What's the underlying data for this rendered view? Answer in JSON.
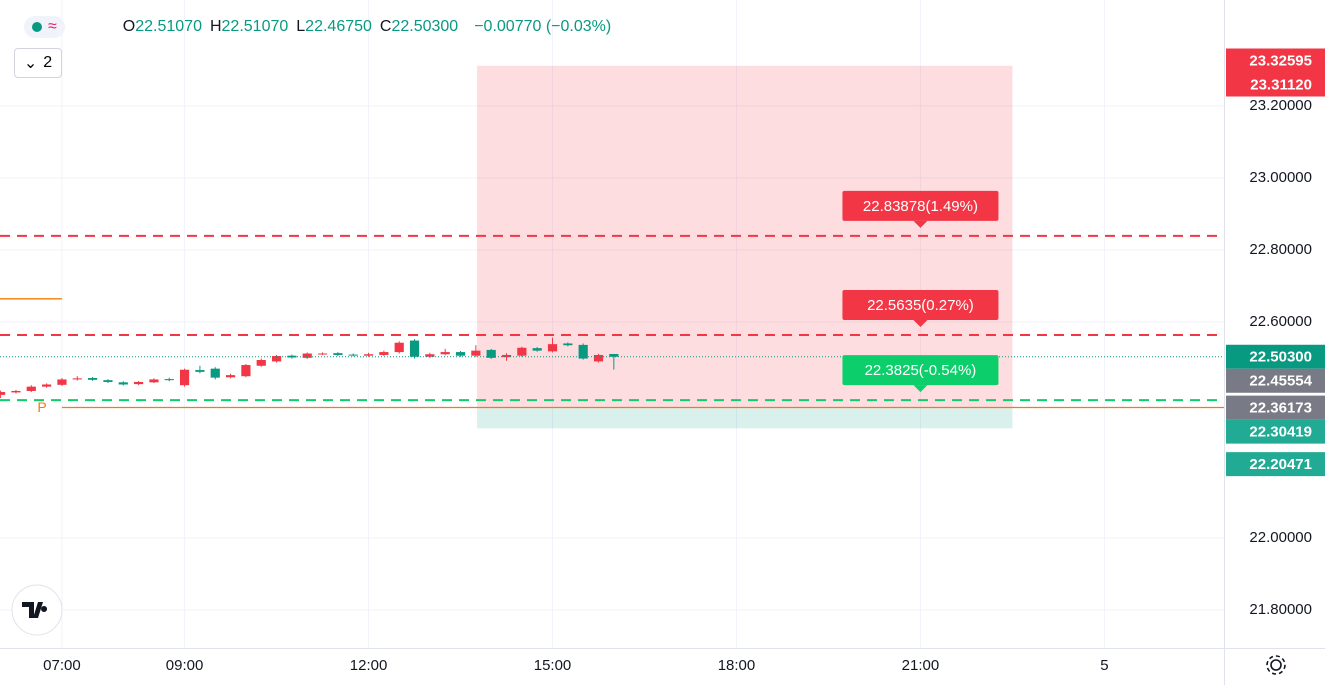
{
  "chart_data": {
    "type": "candlestick",
    "header": {
      "labels": [
        "O",
        "H",
        "L",
        "C"
      ],
      "values": [
        "22.51070",
        "22.51070",
        "22.46750",
        "22.50300"
      ],
      "change": "−0.00770 (−0.03%)"
    },
    "indicator_count": "2",
    "x": [
      6,
      6.25,
      6.5,
      6.75,
      7,
      7.25,
      7.5,
      7.75,
      8,
      8.25,
      8.5,
      8.75,
      9,
      9.25,
      9.5,
      9.75,
      10,
      10.25,
      10.5,
      10.75,
      11,
      11.25,
      11.5,
      11.75,
      12,
      12.25,
      12.5,
      12.75,
      13,
      13.25,
      13.5,
      13.75,
      14,
      14.25,
      14.5,
      14.75,
      15,
      15.25,
      15.5,
      15.75,
      16
    ],
    "open": [
      22.397,
      22.404,
      22.408,
      22.42,
      22.425,
      22.44,
      22.444,
      22.438,
      22.432,
      22.427,
      22.432,
      22.441,
      22.424,
      22.466,
      22.47,
      22.446,
      22.449,
      22.478,
      22.49,
      22.506,
      22.5,
      22.511,
      22.513,
      22.509,
      22.506,
      22.508,
      22.516,
      22.548,
      22.503,
      22.51,
      22.516,
      22.506,
      22.522,
      22.502,
      22.506,
      22.527,
      22.518,
      22.54,
      22.536,
      22.49,
      22.5107
    ],
    "high": [
      22.409,
      22.411,
      22.424,
      22.429,
      22.444,
      22.449,
      22.447,
      22.441,
      22.435,
      22.436,
      22.443,
      22.445,
      22.47,
      22.478,
      22.474,
      22.456,
      22.483,
      22.498,
      22.508,
      22.509,
      22.515,
      22.515,
      22.516,
      22.512,
      22.514,
      22.52,
      22.546,
      22.552,
      22.514,
      22.525,
      22.519,
      22.535,
      22.525,
      22.513,
      22.531,
      22.53,
      22.556,
      22.543,
      22.54,
      22.511,
      22.5107
    ],
    "low": [
      22.388,
      22.401,
      22.405,
      22.417,
      22.422,
      22.437,
      22.436,
      22.43,
      22.423,
      22.424,
      22.43,
      22.435,
      22.42,
      22.457,
      22.44,
      22.443,
      22.446,
      22.475,
      22.487,
      22.498,
      22.497,
      22.508,
      22.505,
      22.504,
      22.503,
      22.505,
      22.512,
      22.498,
      22.5,
      22.507,
      22.503,
      22.502,
      22.497,
      22.492,
      22.503,
      22.517,
      22.515,
      22.532,
      22.495,
      22.487,
      22.4675
    ],
    "close": [
      22.405,
      22.408,
      22.42,
      22.426,
      22.44,
      22.443,
      22.439,
      22.433,
      22.426,
      22.433,
      22.44,
      22.438,
      22.467,
      22.461,
      22.445,
      22.452,
      22.48,
      22.494,
      22.505,
      22.501,
      22.512,
      22.512,
      22.508,
      22.507,
      22.51,
      22.516,
      22.542,
      22.503,
      22.51,
      22.516,
      22.506,
      22.52,
      22.5,
      22.508,
      22.528,
      22.52,
      22.538,
      22.535,
      22.498,
      22.508,
      22.503
    ],
    "up_color": "#f23645",
    "down_color": "#089981",
    "xlim": [
      5.99,
      25.95
    ],
    "xticks": [
      {
        "value": 7,
        "label": "07:00"
      },
      {
        "value": 9,
        "label": "09:00"
      },
      {
        "value": 12,
        "label": "12:00"
      },
      {
        "value": 15,
        "label": "15:00"
      },
      {
        "value": 18,
        "label": "18:00"
      },
      {
        "value": 21,
        "label": "21:00"
      },
      {
        "value": 24,
        "label": "5"
      }
    ],
    "ylim": [
      21.694,
      23.494
    ],
    "yticks": [
      {
        "value": 23.2,
        "label": "23.20000"
      },
      {
        "value": 23.0,
        "label": "23.00000"
      },
      {
        "value": 22.8,
        "label": "22.80000"
      },
      {
        "value": 22.6,
        "label": "22.60000"
      },
      {
        "value": 22.0,
        "label": "22.00000"
      },
      {
        "value": 21.8,
        "label": "21.80000"
      }
    ],
    "grid": true,
    "position": {
      "x_start": 13.77,
      "x_end": 22.5,
      "stop": 23.3112,
      "entry": 22.36173,
      "target": 22.30419
    },
    "orange_lines": [
      {
        "value": 22.664,
        "from": 5.99,
        "to": 7
      },
      {
        "value": 22.362,
        "from": 7,
        "to": 25.95
      }
    ],
    "pivot_label": "P",
    "levels": [
      {
        "value": 22.83878,
        "label": "22.83878(1.49%)",
        "color": "#f23645"
      },
      {
        "value": 22.5635,
        "label": "22.5635(0.27%)",
        "color": "#f23645"
      },
      {
        "value": 22.3825,
        "label": "22.3825(-0.54%)",
        "color": "#0ccf6b"
      }
    ],
    "level_label_x": 21,
    "badges": [
      {
        "value": 23.32595,
        "label": "23.32595",
        "color": "#f23645"
      },
      {
        "value": 23.3112,
        "label": "23.31120",
        "color": "#f23645"
      },
      {
        "value": 22.503,
        "label": "22.50300",
        "color": "#089981"
      },
      {
        "value": 22.45554,
        "label": "22.45554",
        "color": "#787b86"
      },
      {
        "value": 22.36173,
        "label": "22.36173",
        "color": "#787b86"
      },
      {
        "value": 22.30419,
        "label": "22.30419",
        "color": "#22ab94"
      },
      {
        "value": 22.20471,
        "label": "22.20471",
        "color": "#22ab94"
      }
    ]
  }
}
